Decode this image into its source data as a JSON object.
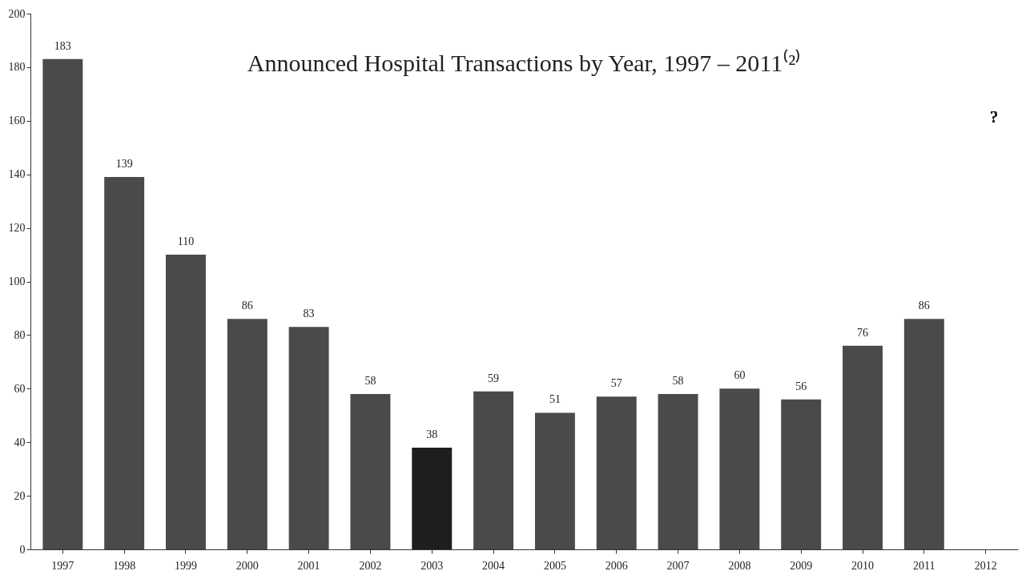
{
  "chart_data": {
    "type": "bar",
    "title": "Announced Hospital Transactions by Year, 1997 – 2011⁽²⁾",
    "categories": [
      "1997",
      "1998",
      "1999",
      "2000",
      "2001",
      "2002",
      "2003",
      "2004",
      "2005",
      "2006",
      "2007",
      "2008",
      "2009",
      "2010",
      "2011",
      "2012"
    ],
    "values": [
      183,
      139,
      110,
      86,
      83,
      58,
      38,
      59,
      51,
      57,
      58,
      60,
      56,
      76,
      86,
      null
    ],
    "colors": [
      "#4a4a4a",
      "#4a4a4a",
      "#4a4a4a",
      "#4a4a4a",
      "#4a4a4a",
      "#4a4a4a",
      "#1e1e1e",
      "#4a4a4a",
      "#4a4a4a",
      "#4a4a4a",
      "#4a4a4a",
      "#4a4a4a",
      "#4a4a4a",
      "#4a4a4a",
      "#4a4a4a",
      "#4a4a4a"
    ],
    "annotations": [
      "?"
    ],
    "ylim": [
      0,
      200
    ],
    "yticks": [
      0,
      20,
      40,
      60,
      80,
      100,
      120,
      140,
      160,
      180,
      200
    ],
    "data_labels": true
  }
}
